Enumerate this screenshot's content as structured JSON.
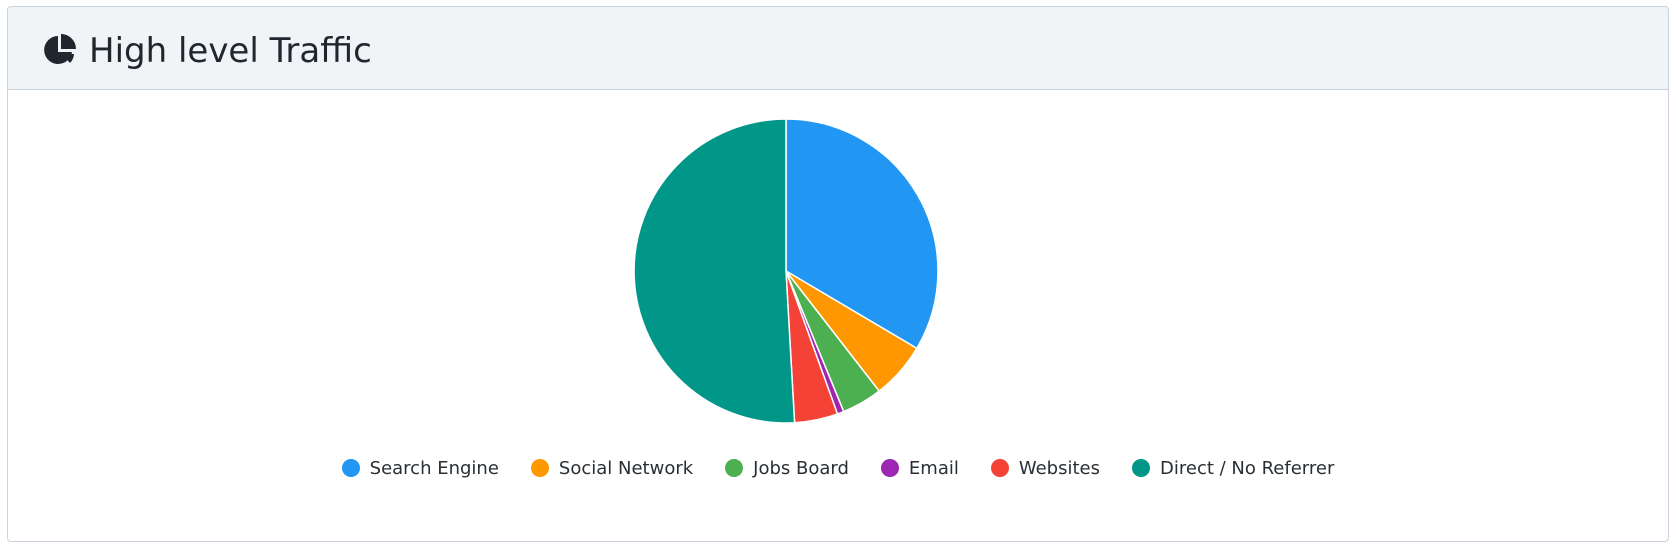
{
  "header": {
    "title": "High level Traffic",
    "icon": "pie-chart-icon"
  },
  "colors": {
    "header_bg": "#f0f4f7",
    "border": "#c9d2dc",
    "text": "#1f262d"
  },
  "chart_data": {
    "type": "pie",
    "title": "",
    "categories": [
      "Search Engine",
      "Social Network",
      "Jobs Board",
      "Email",
      "Websites",
      "Direct / No Referrer"
    ],
    "values": [
      33.5,
      6.0,
      4.3,
      0.7,
      4.6,
      50.9
    ],
    "colors": [
      "#2196f3",
      "#ff9800",
      "#4caf50",
      "#9c27b0",
      "#f44336",
      "#009688"
    ],
    "legend_position": "bottom"
  }
}
